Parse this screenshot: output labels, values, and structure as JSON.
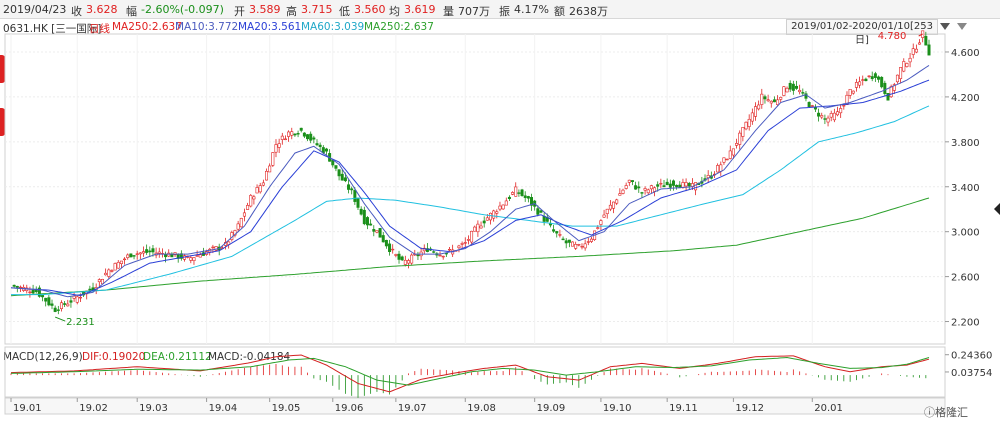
{
  "info": {
    "date": "2019/04/23",
    "close_label": "收",
    "close": "3.628",
    "change_label": "幅",
    "change": "-2.60%(-0.097)",
    "open_label": "开",
    "open": "3.589",
    "high_label": "高",
    "high": "3.715",
    "low_label": "低",
    "low": "3.560",
    "avg_label": "均",
    "avg": "3.619",
    "vol_label": "量",
    "vol": "707万",
    "amp_label": "振",
    "amp": "4.17%",
    "amt_label": "额",
    "amt": "2638万"
  },
  "ma_bar": {
    "code": "0631.HK [三一国际]",
    "period": "日线",
    "ma250a": "MA250:2.637",
    "ma10": "MA10:3.772",
    "ma20": "MA20:3.561",
    "ma60": "MA60:3.039",
    "ma250": "MA250:2.637"
  },
  "range_label": "2019/01/02-2020/01/10[253日]",
  "macd_header": {
    "name": "MACD(12,26,9)",
    "dif": "DIF:0.19020",
    "dea": "DEA:0.21112",
    "macd": "MACD:-0.04184"
  },
  "watermark": "格隆汇",
  "colors": {
    "up": "#e02020",
    "down": "#1a8f1a",
    "ma10": "#4b5bbf",
    "ma20": "#2a3fd6",
    "ma60": "#20c0e0",
    "ma250": "#2ca02c",
    "dif": "#d32020",
    "dea": "#2ca02c"
  },
  "chart_data": {
    "type": "candlestick",
    "y_ticks": [
      "4.600",
      "4.200",
      "3.800",
      "3.400",
      "3.000",
      "2.600",
      "2.200"
    ],
    "ylim": [
      2.0,
      4.76
    ],
    "x_labels": [
      "19.01",
      "19.02",
      "19.03",
      "19.04",
      "19.05",
      "19.06",
      "19.07",
      "19.08",
      "19.09",
      "19.10",
      "19.11",
      "19.12",
      "20.01"
    ],
    "annotations": {
      "high": "4.780",
      "low": "2.231"
    },
    "macd_ticks": [
      "0.24360",
      "0.03754"
    ],
    "price_path": [
      [
        0,
        2.52
      ],
      [
        8,
        2.47
      ],
      [
        14,
        2.31
      ],
      [
        20,
        2.4
      ],
      [
        26,
        2.5
      ],
      [
        31,
        2.66
      ],
      [
        38,
        2.8
      ],
      [
        44,
        2.82
      ],
      [
        50,
        2.8
      ],
      [
        56,
        2.76
      ],
      [
        62,
        2.82
      ],
      [
        68,
        2.88
      ],
      [
        72,
        3.05
      ],
      [
        76,
        3.3
      ],
      [
        80,
        3.45
      ],
      [
        84,
        3.78
      ],
      [
        88,
        3.88
      ],
      [
        92,
        3.9
      ],
      [
        96,
        3.8
      ],
      [
        100,
        3.7
      ],
      [
        104,
        3.5
      ],
      [
        108,
        3.35
      ],
      [
        112,
        3.1
      ],
      [
        116,
        3.0
      ],
      [
        120,
        2.85
      ],
      [
        124,
        2.72
      ],
      [
        128,
        2.78
      ],
      [
        132,
        2.85
      ],
      [
        136,
        2.8
      ],
      [
        140,
        2.83
      ],
      [
        144,
        2.9
      ],
      [
        148,
        3.05
      ],
      [
        152,
        3.15
      ],
      [
        156,
        3.25
      ],
      [
        160,
        3.37
      ],
      [
        164,
        3.28
      ],
      [
        168,
        3.15
      ],
      [
        172,
        3.0
      ],
      [
        176,
        2.9
      ],
      [
        180,
        2.86
      ],
      [
        184,
        2.95
      ],
      [
        188,
        3.15
      ],
      [
        192,
        3.3
      ],
      [
        196,
        3.45
      ],
      [
        200,
        3.35
      ],
      [
        204,
        3.4
      ],
      [
        210,
        3.43
      ],
      [
        216,
        3.4
      ],
      [
        222,
        3.5
      ],
      [
        228,
        3.7
      ],
      [
        234,
        4.0
      ],
      [
        238,
        4.2
      ],
      [
        242,
        4.15
      ],
      [
        246,
        4.3
      ],
      [
        250,
        4.25
      ],
      [
        254,
        4.1
      ],
      [
        258,
        4.0
      ],
      [
        262,
        4.05
      ],
      [
        266,
        4.25
      ],
      [
        270,
        4.35
      ],
      [
        274,
        4.4
      ],
      [
        278,
        4.2
      ],
      [
        282,
        4.45
      ],
      [
        286,
        4.6
      ],
      [
        289,
        4.76
      ],
      [
        291,
        4.6
      ]
    ],
    "ma10_path": [
      [
        0,
        2.5
      ],
      [
        10,
        2.48
      ],
      [
        18,
        2.42
      ],
      [
        26,
        2.46
      ],
      [
        36,
        2.7
      ],
      [
        46,
        2.8
      ],
      [
        56,
        2.8
      ],
      [
        66,
        2.85
      ],
      [
        74,
        3.05
      ],
      [
        82,
        3.4
      ],
      [
        90,
        3.7
      ],
      [
        96,
        3.76
      ],
      [
        104,
        3.6
      ],
      [
        112,
        3.25
      ],
      [
        120,
        2.95
      ],
      [
        128,
        2.8
      ],
      [
        136,
        2.8
      ],
      [
        144,
        2.85
      ],
      [
        152,
        3.0
      ],
      [
        160,
        3.2
      ],
      [
        166,
        3.25
      ],
      [
        172,
        3.1
      ],
      [
        180,
        2.92
      ],
      [
        188,
        3.0
      ],
      [
        196,
        3.25
      ],
      [
        206,
        3.38
      ],
      [
        216,
        3.4
      ],
      [
        226,
        3.55
      ],
      [
        236,
        3.9
      ],
      [
        244,
        4.15
      ],
      [
        252,
        4.22
      ],
      [
        258,
        4.1
      ],
      [
        266,
        4.15
      ],
      [
        276,
        4.25
      ],
      [
        284,
        4.35
      ],
      [
        291,
        4.48
      ]
    ],
    "ma20_path": [
      [
        0,
        2.5
      ],
      [
        12,
        2.48
      ],
      [
        22,
        2.43
      ],
      [
        32,
        2.55
      ],
      [
        44,
        2.72
      ],
      [
        56,
        2.78
      ],
      [
        66,
        2.83
      ],
      [
        76,
        3.0
      ],
      [
        86,
        3.4
      ],
      [
        96,
        3.72
      ],
      [
        104,
        3.62
      ],
      [
        112,
        3.35
      ],
      [
        120,
        3.05
      ],
      [
        130,
        2.85
      ],
      [
        140,
        2.82
      ],
      [
        150,
        2.92
      ],
      [
        160,
        3.1
      ],
      [
        168,
        3.15
      ],
      [
        176,
        3.05
      ],
      [
        184,
        2.97
      ],
      [
        194,
        3.1
      ],
      [
        206,
        3.3
      ],
      [
        218,
        3.4
      ],
      [
        230,
        3.55
      ],
      [
        240,
        3.9
      ],
      [
        250,
        4.1
      ],
      [
        260,
        4.12
      ],
      [
        270,
        4.15
      ],
      [
        282,
        4.25
      ],
      [
        291,
        4.35
      ]
    ],
    "ma60_path": [
      [
        10,
        2.44
      ],
      [
        30,
        2.48
      ],
      [
        50,
        2.62
      ],
      [
        70,
        2.78
      ],
      [
        90,
        3.1
      ],
      [
        100,
        3.27
      ],
      [
        110,
        3.3
      ],
      [
        122,
        3.28
      ],
      [
        136,
        3.22
      ],
      [
        150,
        3.15
      ],
      [
        164,
        3.1
      ],
      [
        178,
        3.05
      ],
      [
        192,
        3.05
      ],
      [
        206,
        3.15
      ],
      [
        220,
        3.25
      ],
      [
        232,
        3.33
      ],
      [
        244,
        3.55
      ],
      [
        256,
        3.8
      ],
      [
        268,
        3.88
      ],
      [
        280,
        3.98
      ],
      [
        291,
        4.12
      ]
    ],
    "ma250_path": [
      [
        0,
        2.43
      ],
      [
        30,
        2.48
      ],
      [
        60,
        2.56
      ],
      [
        90,
        2.62
      ],
      [
        120,
        2.69
      ],
      [
        150,
        2.74
      ],
      [
        180,
        2.78
      ],
      [
        210,
        2.83
      ],
      [
        230,
        2.88
      ],
      [
        250,
        3.0
      ],
      [
        270,
        3.12
      ],
      [
        291,
        3.3
      ]
    ],
    "dif_path": [
      [
        0,
        0.03
      ],
      [
        20,
        0.05
      ],
      [
        40,
        0.1
      ],
      [
        60,
        0.05
      ],
      [
        76,
        0.15
      ],
      [
        84,
        0.22
      ],
      [
        92,
        0.24
      ],
      [
        100,
        0.12
      ],
      [
        110,
        -0.1
      ],
      [
        120,
        -0.2
      ],
      [
        130,
        -0.05
      ],
      [
        140,
        0.02
      ],
      [
        150,
        0.08
      ],
      [
        160,
        0.12
      ],
      [
        170,
        -0.02
      ],
      [
        180,
        -0.06
      ],
      [
        190,
        0.1
      ],
      [
        200,
        0.14
      ],
      [
        212,
        0.08
      ],
      [
        224,
        0.14
      ],
      [
        236,
        0.22
      ],
      [
        248,
        0.23
      ],
      [
        258,
        0.1
      ],
      [
        266,
        0.04
      ],
      [
        276,
        0.1
      ],
      [
        284,
        0.12
      ],
      [
        291,
        0.19
      ]
    ],
    "dea_path": [
      [
        0,
        0.02
      ],
      [
        20,
        0.04
      ],
      [
        40,
        0.07
      ],
      [
        60,
        0.06
      ],
      [
        76,
        0.1
      ],
      [
        88,
        0.18
      ],
      [
        96,
        0.2
      ],
      [
        106,
        0.1
      ],
      [
        116,
        -0.06
      ],
      [
        126,
        -0.12
      ],
      [
        136,
        -0.04
      ],
      [
        146,
        0.04
      ],
      [
        156,
        0.08
      ],
      [
        166,
        0.06
      ],
      [
        176,
        0.0
      ],
      [
        186,
        0.04
      ],
      [
        198,
        0.1
      ],
      [
        210,
        0.09
      ],
      [
        222,
        0.11
      ],
      [
        234,
        0.18
      ],
      [
        246,
        0.21
      ],
      [
        256,
        0.14
      ],
      [
        266,
        0.08
      ],
      [
        276,
        0.09
      ],
      [
        284,
        0.13
      ],
      [
        291,
        0.21
      ]
    ]
  }
}
